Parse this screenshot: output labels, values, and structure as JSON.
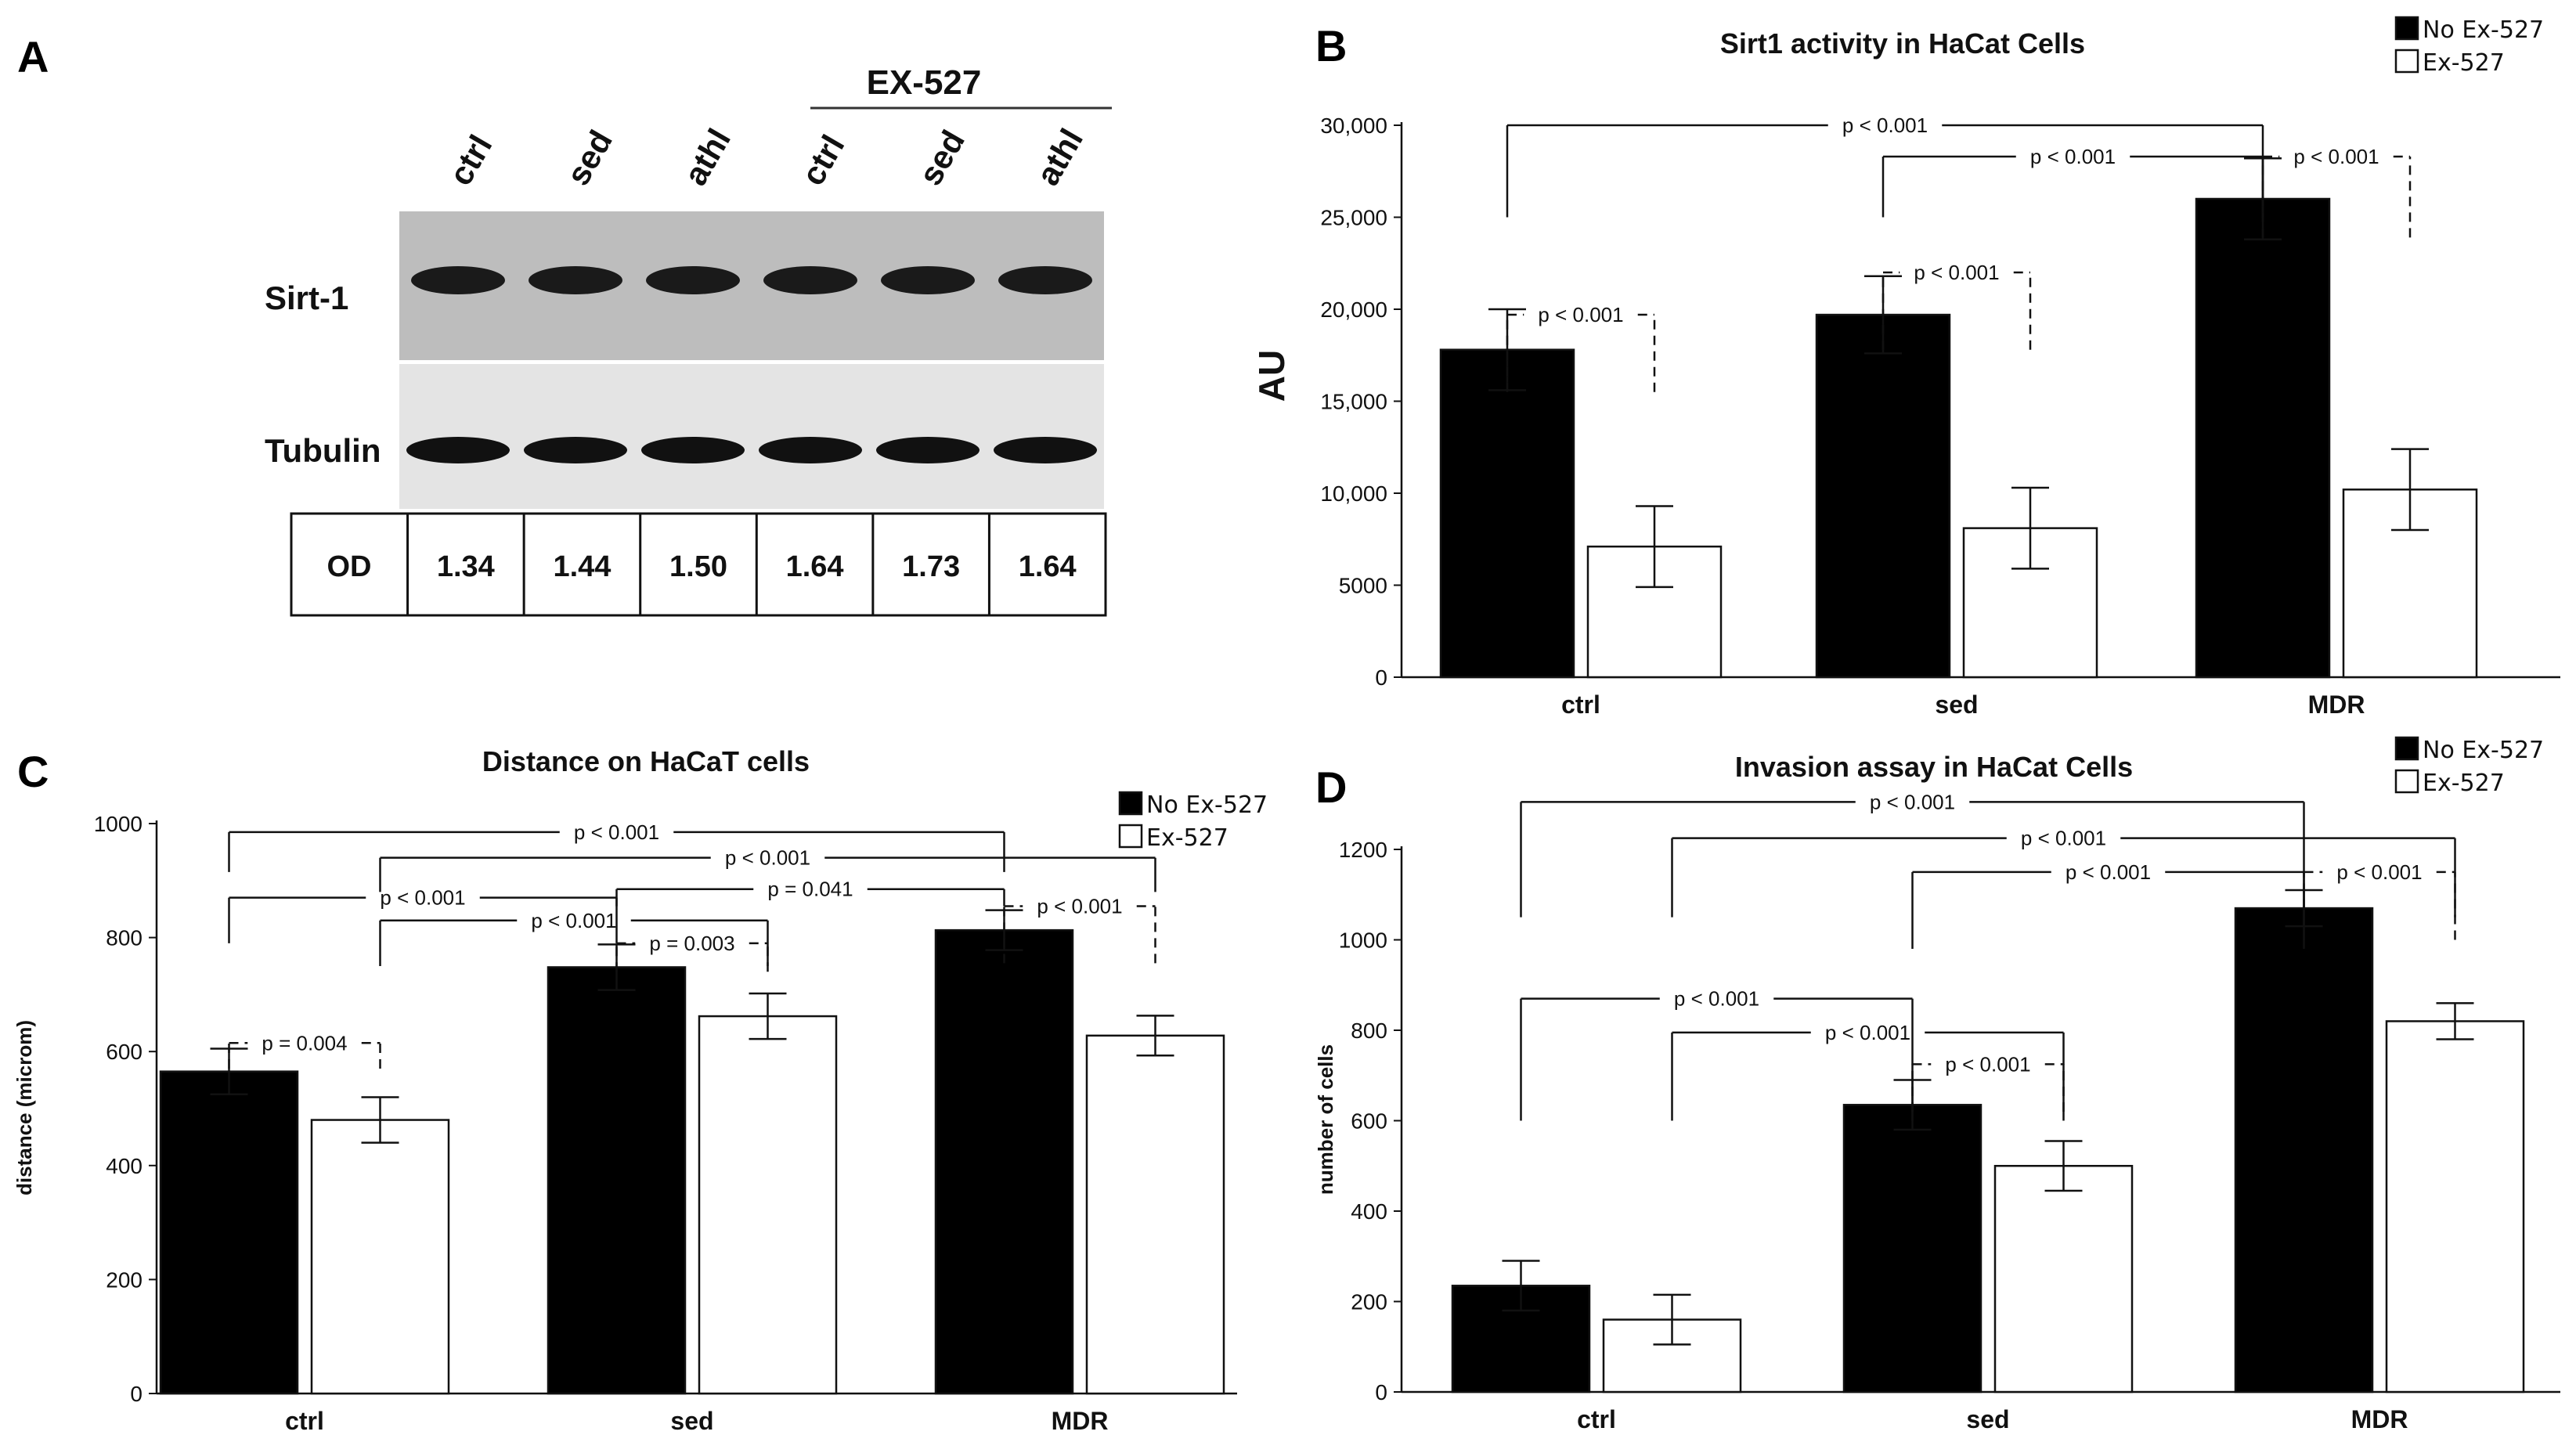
{
  "panels": {
    "A": {
      "letter": "A",
      "treatment_label": "EX-527",
      "lanes": [
        "ctrl",
        "sed",
        "athl",
        "ctrl",
        "sed",
        "athl"
      ],
      "blot_rows": [
        "Sirt-1",
        "Tubulin"
      ],
      "od_header": "OD",
      "od_values": [
        "1.34",
        "1.44",
        "1.50",
        "1.64",
        "1.73",
        "1.64"
      ]
    },
    "B": {
      "letter": "B"
    },
    "C": {
      "letter": "C"
    },
    "D": {
      "letter": "D"
    }
  },
  "chart_data": [
    {
      "panel": "B",
      "type": "bar",
      "title": "Sirt1 activity in HaCat Cells",
      "ylabel": "AU",
      "xlabel": "",
      "ylim": [
        0,
        30000
      ],
      "yticks": [
        {
          "value": 0,
          "label": "0"
        },
        {
          "value": 5000,
          "label": "5000"
        },
        {
          "value": 10000,
          "label": "10,000"
        },
        {
          "value": 15000,
          "label": "15,000"
        },
        {
          "value": 20000,
          "label": "20,000"
        },
        {
          "value": 25000,
          "label": "25,000"
        },
        {
          "value": 30000,
          "label": "30,000"
        }
      ],
      "categories": [
        "ctrl",
        "sed",
        "MDR"
      ],
      "legend": {
        "position": "top-right",
        "entries": [
          "No Ex-527",
          "Ex-527"
        ]
      },
      "series": [
        {
          "name": "No Ex-527",
          "color": "#000000",
          "values": [
            17800,
            19700,
            26000
          ],
          "errors": [
            2200,
            2100,
            2200
          ]
        },
        {
          "name": "Ex-527",
          "color": "#ffffff",
          "values": [
            7100,
            8100,
            10200
          ],
          "errors": [
            2200,
            2200,
            2200
          ]
        }
      ],
      "annotations": [
        {
          "text": "p < 0.001",
          "style": "solid",
          "from": [
            0,
            0
          ],
          "to": [
            2,
            0
          ],
          "level": 30000,
          "drop": 25000
        },
        {
          "text": "p < 0.001",
          "style": "solid",
          "from": [
            1,
            0
          ],
          "to": [
            2,
            0
          ],
          "level": 28300,
          "drop": 25000
        },
        {
          "text": "p < 0.001",
          "style": "dashed",
          "from": [
            2,
            0
          ],
          "to": [
            2,
            1
          ],
          "level": 28300,
          "drop": 23900
        },
        {
          "text": "p < 0.001",
          "style": "dashed",
          "from": [
            1,
            0
          ],
          "to": [
            1,
            1
          ],
          "level": 22000,
          "drop": 17800
        },
        {
          "text": "p < 0.001",
          "style": "dashed",
          "from": [
            0,
            0
          ],
          "to": [
            0,
            1
          ],
          "level": 19700,
          "drop": 15500
        }
      ]
    },
    {
      "panel": "C",
      "type": "bar",
      "title": "Distance on HaCaT cells",
      "ylabel": "distance (microm)",
      "xlabel": "",
      "ylim": [
        0,
        1000
      ],
      "yticks": [
        {
          "value": 0,
          "label": "0"
        },
        {
          "value": 200,
          "label": "200"
        },
        {
          "value": 400,
          "label": "400"
        },
        {
          "value": 600,
          "label": "600"
        },
        {
          "value": 800,
          "label": "800"
        },
        {
          "value": 1000,
          "label": "1000"
        }
      ],
      "categories": [
        "ctrl",
        "sed",
        "MDR"
      ],
      "legend": {
        "position": "top-right",
        "entries": [
          "No Ex-527",
          "Ex-527"
        ]
      },
      "series": [
        {
          "name": "No Ex-527",
          "color": "#000000",
          "values": [
            565,
            748,
            813
          ],
          "errors": [
            40,
            40,
            35
          ]
        },
        {
          "name": "Ex-527",
          "color": "#ffffff",
          "values": [
            480,
            662,
            628
          ],
          "errors": [
            40,
            40,
            35
          ]
        }
      ],
      "annotations": [
        {
          "text": "p < 0.001",
          "style": "solid",
          "from": [
            0,
            0
          ],
          "to": [
            2,
            0
          ],
          "level": 985,
          "drop": 915
        },
        {
          "text": "p < 0.001",
          "style": "solid",
          "from": [
            0,
            1
          ],
          "to": [
            2,
            1
          ],
          "level": 940,
          "drop": 880
        },
        {
          "text": "p < 0.001",
          "style": "solid",
          "from": [
            0,
            0
          ],
          "to": [
            1,
            0
          ],
          "level": 870,
          "drop": 790
        },
        {
          "text": "p = 0.041",
          "style": "solid",
          "from": [
            1,
            0
          ],
          "to": [
            2,
            0
          ],
          "level": 885,
          "drop": 855
        },
        {
          "text": "p < 0.001",
          "style": "solid",
          "from": [
            0,
            1
          ],
          "to": [
            1,
            1
          ],
          "level": 830,
          "drop": 750
        },
        {
          "text": "p = 0.003",
          "style": "dashed",
          "from": [
            1,
            0
          ],
          "to": [
            1,
            1
          ],
          "level": 790,
          "drop": 740
        },
        {
          "text": "p < 0.001",
          "style": "dashed",
          "from": [
            2,
            0
          ],
          "to": [
            2,
            1
          ],
          "level": 855,
          "drop": 755
        },
        {
          "text": "p = 0.004",
          "style": "dashed",
          "from": [
            0,
            0
          ],
          "to": [
            0,
            1
          ],
          "level": 615,
          "drop": 570
        }
      ]
    },
    {
      "panel": "D",
      "type": "bar",
      "title": "Invasion assay in HaCat Cells",
      "ylabel": "number of cells",
      "xlabel": "",
      "ylim": [
        0,
        1200
      ],
      "yticks": [
        {
          "value": 0,
          "label": "0"
        },
        {
          "value": 200,
          "label": "200"
        },
        {
          "value": 400,
          "label": "400"
        },
        {
          "value": 600,
          "label": "600"
        },
        {
          "value": 800,
          "label": "800"
        },
        {
          "value": 1000,
          "label": "1000"
        },
        {
          "value": 1200,
          "label": "1200"
        }
      ],
      "categories": [
        "ctrl",
        "sed",
        "MDR"
      ],
      "legend": {
        "position": "top-right",
        "entries": [
          "No Ex-527",
          "Ex-527"
        ]
      },
      "series": [
        {
          "name": "No Ex-527",
          "color": "#000000",
          "values": [
            235,
            635,
            1070
          ],
          "errors": [
            55,
            55,
            40
          ]
        },
        {
          "name": "Ex-527",
          "color": "#ffffff",
          "values": [
            160,
            500,
            820
          ],
          "errors": [
            55,
            55,
            40
          ]
        }
      ],
      "annotations": [
        {
          "text": "p < 0.001",
          "style": "solid",
          "from": [
            0,
            0
          ],
          "to": [
            2,
            0
          ],
          "level": 1305,
          "drop": 1050
        },
        {
          "text": "p < 0.001",
          "style": "solid",
          "from": [
            0,
            1
          ],
          "to": [
            2,
            1
          ],
          "level": 1225,
          "drop": 1050
        },
        {
          "text": "p < 0.001",
          "style": "solid",
          "from": [
            1,
            0
          ],
          "to": [
            2,
            0
          ],
          "level": 1150,
          "drop": 980
        },
        {
          "text": "p < 0.001",
          "style": "dashed",
          "from": [
            2,
            0
          ],
          "to": [
            2,
            1
          ],
          "level": 1150,
          "drop": 1000
        },
        {
          "text": "p < 0.001",
          "style": "solid",
          "from": [
            0,
            0
          ],
          "to": [
            1,
            0
          ],
          "level": 870,
          "drop": 600
        },
        {
          "text": "p < 0.001",
          "style": "solid",
          "from": [
            0,
            1
          ],
          "to": [
            1,
            1
          ],
          "level": 795,
          "drop": 600
        },
        {
          "text": "p < 0.001",
          "style": "dashed",
          "from": [
            1,
            0
          ],
          "to": [
            1,
            1
          ],
          "level": 725,
          "drop": 620
        }
      ]
    }
  ]
}
